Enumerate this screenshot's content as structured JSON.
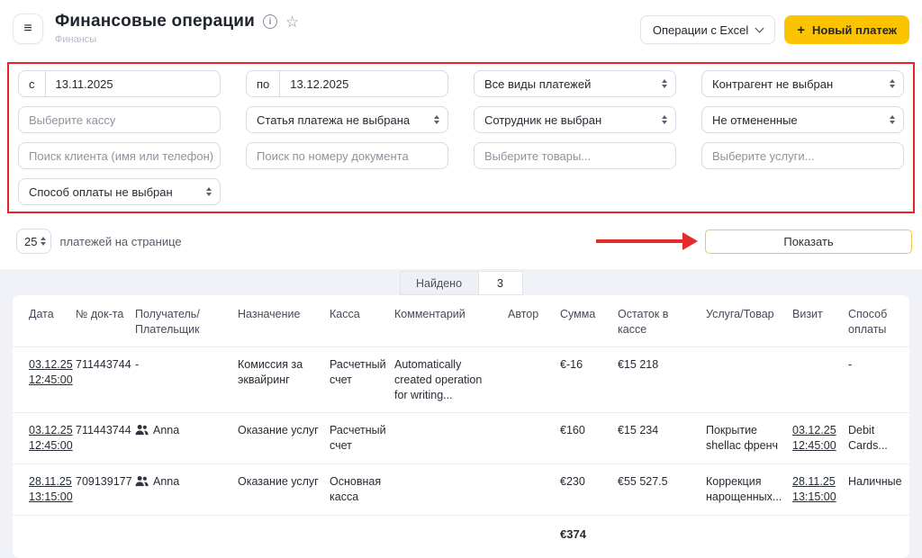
{
  "header": {
    "title": "Финансовые операции",
    "breadcrumb": "Финансы",
    "excel_button_label": "Операции с Excel",
    "new_payment_label": "Новый платеж"
  },
  "filters": {
    "date_from_prefix": "с",
    "date_from_value": "13.11.2025",
    "date_to_prefix": "по",
    "date_to_value": "13.12.2025",
    "payment_type_value": "Все виды платежей",
    "counterparty_value": "Контрагент не выбран",
    "cashbox_placeholder": "Выберите кассу",
    "payment_article_value": "Статья платежа не выбрана",
    "employee_value": "Сотрудник не выбран",
    "cancelled_filter_value": "Не отмененные",
    "client_search_placeholder": "Поиск клиента (имя или телефон)",
    "document_search_placeholder": "Поиск по номеру документа",
    "products_placeholder": "Выберите товары...",
    "services_placeholder": "Выберите услуги...",
    "payment_method_value": "Способ оплаты не выбран"
  },
  "toolbar": {
    "per_page_value": "25",
    "per_page_label": "платежей на странице",
    "show_button_label": "Показать"
  },
  "results_bar": {
    "found_label": "Найдено",
    "found_count": "3"
  },
  "table": {
    "headers": [
      "Дата",
      "№ док-та",
      "Получатель/ Плательщик",
      "Назначение",
      "Касса",
      "Комментарий",
      "Автор",
      "Сумма",
      "Остаток в кассе",
      "Услуга/Товар",
      "Визит",
      "Способ оплаты"
    ],
    "rows": [
      {
        "date": "03.12.25 12:45:00",
        "doc_number": "711443744",
        "payer": "-",
        "payer_has_icon": false,
        "purpose": "Комиссия за эквайринг",
        "cashbox": "Расчетный счет",
        "comment": "Automatically created operation for writing...",
        "author": "",
        "amount": "€-16",
        "balance": "€15 218",
        "service": "",
        "visit": "",
        "payment_method": "-"
      },
      {
        "date": "03.12.25 12:45:00",
        "doc_number": "711443744",
        "payer": "Anna",
        "payer_has_icon": true,
        "purpose": "Оказание услуг",
        "cashbox": "Расчетный счет",
        "comment": "",
        "author": "",
        "amount": "€160",
        "balance": "€15 234",
        "service": "Покрытие shellac френч",
        "visit": "03.12.25 12:45:00",
        "payment_method": "Debit Cards..."
      },
      {
        "date": "28.11.25 13:15:00",
        "doc_number": "709139177",
        "payer": "Anna",
        "payer_has_icon": true,
        "purpose": "Оказание услуг",
        "cashbox": "Основная касса",
        "comment": "",
        "author": "",
        "amount": "€230",
        "balance": "€55 527.5",
        "service": "Коррекция нарощенных...",
        "visit": "28.11.25 13:15:00",
        "payment_method": "Наличные"
      }
    ],
    "total_amount": "€374"
  },
  "colors": {
    "accent_yellow": "#fcc400",
    "annotation_red": "#e8242b",
    "page_gray": "#f0f2f7"
  }
}
